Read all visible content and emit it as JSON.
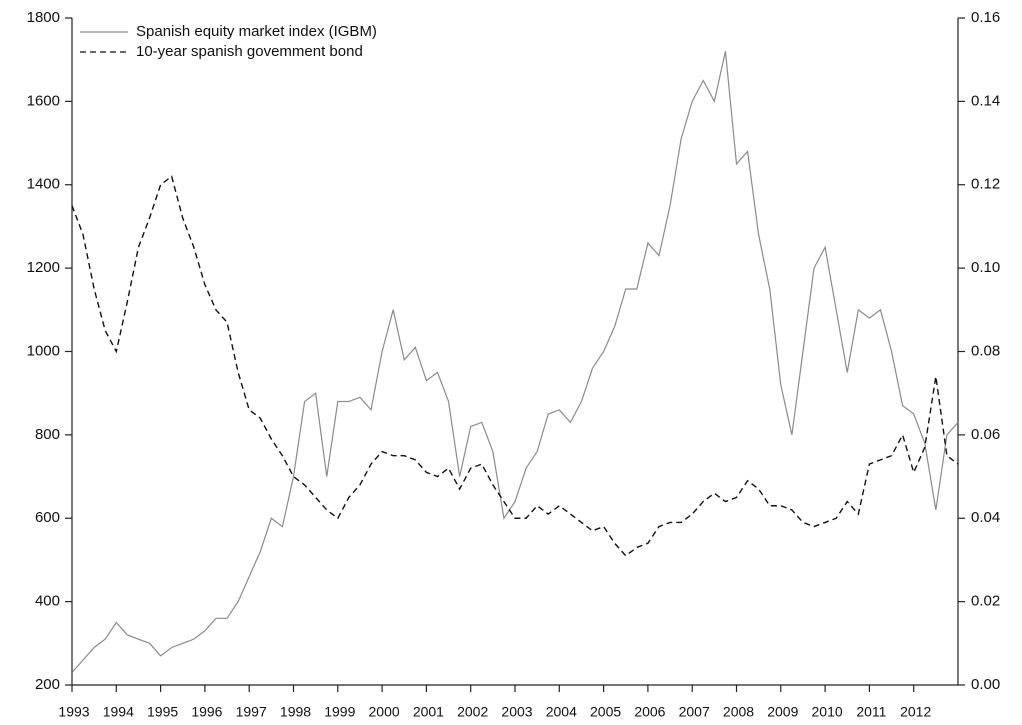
{
  "chart_data": {
    "type": "line",
    "x": [
      1993,
      1993.25,
      1993.5,
      1993.75,
      1994,
      1994.25,
      1994.5,
      1994.75,
      1995,
      1995.25,
      1995.5,
      1995.75,
      1996,
      1996.25,
      1996.5,
      1996.75,
      1997,
      1997.25,
      1997.5,
      1997.75,
      1998,
      1998.25,
      1998.5,
      1998.75,
      1999,
      1999.25,
      1999.5,
      1999.75,
      2000,
      2000.25,
      2000.5,
      2000.75,
      2001,
      2001.25,
      2001.5,
      2001.75,
      2002,
      2002.25,
      2002.5,
      2002.75,
      2003,
      2003.25,
      2003.5,
      2003.75,
      2004,
      2004.25,
      2004.5,
      2004.75,
      2005,
      2005.25,
      2005.5,
      2005.75,
      2006,
      2006.25,
      2006.5,
      2006.75,
      2007,
      2007.25,
      2007.5,
      2007.75,
      2008,
      2008.25,
      2008.5,
      2008.75,
      2009,
      2009.25,
      2009.5,
      2009.75,
      2010,
      2010.25,
      2010.5,
      2010.75,
      2011,
      2011.25,
      2011.5,
      2011.75,
      2012,
      2012.25,
      2012.5,
      2012.75,
      2013
    ],
    "series": [
      {
        "name": "Spanish equity market index (IGBM)",
        "color": "#8a8a8a",
        "dash": "solid",
        "values": [
          230,
          260,
          290,
          310,
          350,
          320,
          310,
          300,
          270,
          290,
          300,
          310,
          330,
          360,
          360,
          400,
          460,
          520,
          600,
          580,
          700,
          880,
          900,
          700,
          880,
          880,
          890,
          860,
          1000,
          1100,
          980,
          1010,
          930,
          950,
          880,
          700,
          820,
          830,
          760,
          600,
          640,
          720,
          760,
          850,
          860,
          830,
          880,
          960,
          1000,
          1060,
          1150,
          1150,
          1260,
          1230,
          1350,
          1510,
          1600,
          1650,
          1600,
          1720,
          1450,
          1480,
          1280,
          1150,
          920,
          800,
          1000,
          1200,
          1250,
          1100,
          950,
          1100,
          1080,
          1100,
          1000,
          870,
          850,
          780,
          620,
          800,
          830
        ]
      },
      {
        "name": "10-year spanish govemment bond",
        "color": "#111111",
        "dash": "dashed",
        "axis": "y2",
        "values": [
          0.115,
          0.108,
          0.095,
          0.085,
          0.08,
          0.092,
          0.105,
          0.112,
          0.12,
          0.122,
          0.112,
          0.105,
          0.096,
          0.09,
          0.087,
          0.075,
          0.066,
          0.064,
          0.059,
          0.055,
          0.05,
          0.048,
          0.045,
          0.042,
          0.04,
          0.045,
          0.048,
          0.053,
          0.056,
          0.055,
          0.055,
          0.054,
          0.051,
          0.05,
          0.052,
          0.047,
          0.052,
          0.053,
          0.048,
          0.044,
          0.04,
          0.04,
          0.043,
          0.041,
          0.043,
          0.041,
          0.039,
          0.037,
          0.038,
          0.034,
          0.031,
          0.033,
          0.034,
          0.038,
          0.039,
          0.039,
          0.041,
          0.044,
          0.046,
          0.044,
          0.045,
          0.049,
          0.047,
          0.043,
          0.043,
          0.042,
          0.039,
          0.038,
          0.039,
          0.04,
          0.044,
          0.041,
          0.053,
          0.054,
          0.055,
          0.06,
          0.051,
          0.057,
          0.074,
          0.055,
          0.053
        ]
      }
    ],
    "xlim": [
      1993,
      2013
    ],
    "xticks": [
      1993,
      1994,
      1995,
      1996,
      1997,
      1998,
      1999,
      2000,
      2001,
      2002,
      2003,
      2004,
      2005,
      2006,
      2007,
      2008,
      2009,
      2010,
      2011,
      2012
    ],
    "ylim": [
      200,
      1800
    ],
    "yticks": [
      200,
      400,
      600,
      800,
      1000,
      1200,
      1400,
      1600,
      1800
    ],
    "y2lim": [
      0,
      0.16
    ],
    "y2ticks": [
      {
        "value": 0,
        "label": "0.00"
      },
      0.02,
      0.04,
      0.06,
      0.08,
      {
        "value": 0.1,
        "label": "0.10"
      },
      0.12,
      0.14,
      0.16
    ],
    "legend": "upper left"
  }
}
